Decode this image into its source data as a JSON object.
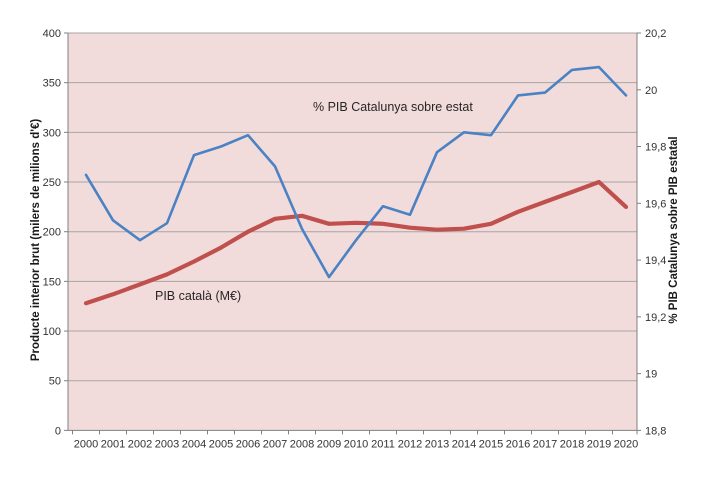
{
  "chart_data": {
    "type": "line",
    "categories": [
      "2000",
      "2001",
      "2002",
      "2003",
      "2004",
      "2005",
      "2006",
      "2007",
      "2008",
      "2009",
      "2010",
      "2011",
      "2012",
      "2013",
      "2014",
      "2015",
      "2016",
      "2017",
      "2018",
      "2019",
      "2020"
    ],
    "series": [
      {
        "name": "PIB català (M€)",
        "axis": "left",
        "color": "#C0504D",
        "line_width": 4.2,
        "values": [
          128,
          137,
          147,
          157,
          170,
          184,
          200,
          213,
          216,
          208,
          209,
          208,
          204,
          202,
          203,
          208,
          220,
          230,
          240,
          250,
          225
        ]
      },
      {
        "name": "% PIB Catalunya sobre estat",
        "axis": "right",
        "color": "#4A82C4",
        "line_width": 2.6,
        "values": [
          19.7,
          19.54,
          19.47,
          19.53,
          19.77,
          19.8,
          19.84,
          19.73,
          19.51,
          19.34,
          19.47,
          19.59,
          19.56,
          19.78,
          19.85,
          19.84,
          19.98,
          19.99,
          20.07,
          20.08,
          19.98
        ]
      }
    ],
    "left_axis": {
      "title": "Producte interior brut (milers de milions d'€)",
      "min": 0,
      "max": 400,
      "step": 50,
      "tick_labels": [
        "0",
        "50",
        "100",
        "150",
        "200",
        "250",
        "300",
        "350",
        "400"
      ]
    },
    "right_axis": {
      "title": "% PIB Catalunya sobre PIB estatal",
      "min": 18.8,
      "max": 20.2,
      "step": 0.2,
      "tick_labels": [
        "18,8",
        "19",
        "19,2",
        "19,4",
        "19,6",
        "19,8",
        "20",
        "20,2"
      ]
    },
    "annotations": [
      {
        "name": "pct-series-label",
        "text": "% PIB Catalunya sobre estat",
        "x": 313,
        "y": 111
      },
      {
        "name": "pib-series-label",
        "text": "PIB català (M€)",
        "x": 155,
        "y": 300
      }
    ],
    "grid": true,
    "legend_position": "none",
    "colors": {
      "plot_background": "#F2DCDB",
      "gridline": "#A6A6A6",
      "axis_line": "#808080",
      "text": "#262626"
    }
  }
}
